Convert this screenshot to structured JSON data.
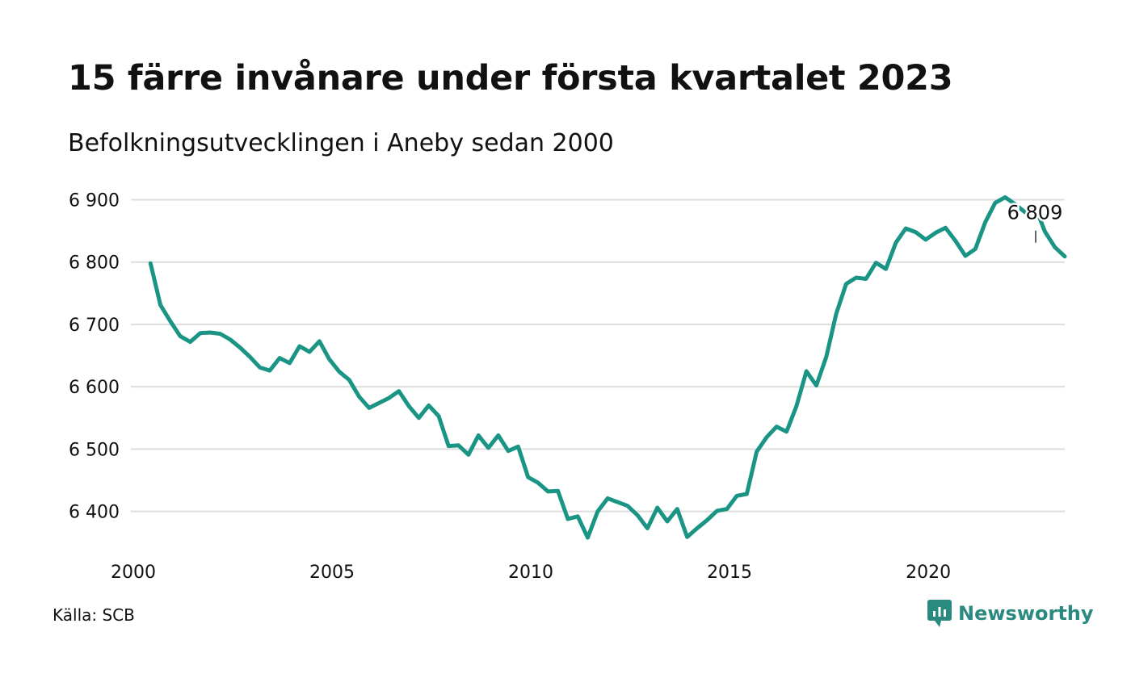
{
  "title": "15 färre invånare under första kvartalet 2023",
  "subtitle": "Befolkningsutvecklingen i Aneby sedan 2000",
  "source": "Källa: SCB",
  "brand": "Newsworthy",
  "brand_icon": "newsworthy-logo-icon",
  "colors": {
    "line": "#1a9484",
    "grid": "#dddddd",
    "brand": "#2b8a80"
  },
  "chart_data": {
    "type": "line",
    "title": "15 färre invånare under första kvartalet 2023",
    "subtitle": "Befolkningsutvecklingen i Aneby sedan 2000",
    "xlabel": "",
    "ylabel": "",
    "grid": true,
    "xlim": [
      2000,
      2023.25
    ],
    "ylim": [
      6340,
      6920
    ],
    "x_ticks": [
      2000,
      2005,
      2010,
      2015,
      2020
    ],
    "x_tick_labels": [
      "2000",
      "2005",
      "2010",
      "2015",
      "2020"
    ],
    "y_ticks": [
      6400,
      6500,
      6600,
      6700,
      6800,
      6900
    ],
    "y_tick_labels": [
      "6 400",
      "6 500",
      "6 600",
      "6 700",
      "6 800",
      "6 900"
    ],
    "end_label": "6 809",
    "series": [
      {
        "x_start": 2000.25,
        "x_step": 0.25,
        "values": [
          6798,
          6731,
          6705,
          6681,
          6672,
          6686,
          6687,
          6685,
          6676,
          6663,
          6648,
          6631,
          6626,
          6646,
          6638,
          6665,
          6656,
          6673,
          6644,
          6624,
          6611,
          6584,
          6566,
          6574,
          6582,
          6593,
          6569,
          6550,
          6570,
          6553,
          6505,
          6506,
          6491,
          6522,
          6502,
          6522,
          6497,
          6504,
          6455,
          6446,
          6432,
          6433,
          6388,
          6392,
          6358,
          6400,
          6421,
          6415,
          6409,
          6394,
          6373,
          6406,
          6384,
          6404,
          6359,
          6373,
          6386,
          6401,
          6404,
          6425,
          6428,
          6496,
          6519,
          6536,
          6528,
          6569,
          6625,
          6602,
          6648,
          6717,
          6765,
          6775,
          6773,
          6799,
          6789,
          6831,
          6854,
          6848,
          6836,
          6847,
          6855,
          6834,
          6810,
          6821,
          6864,
          6895,
          6904,
          6893,
          6880,
          6890,
          6849,
          6824,
          6809
        ]
      }
    ]
  }
}
